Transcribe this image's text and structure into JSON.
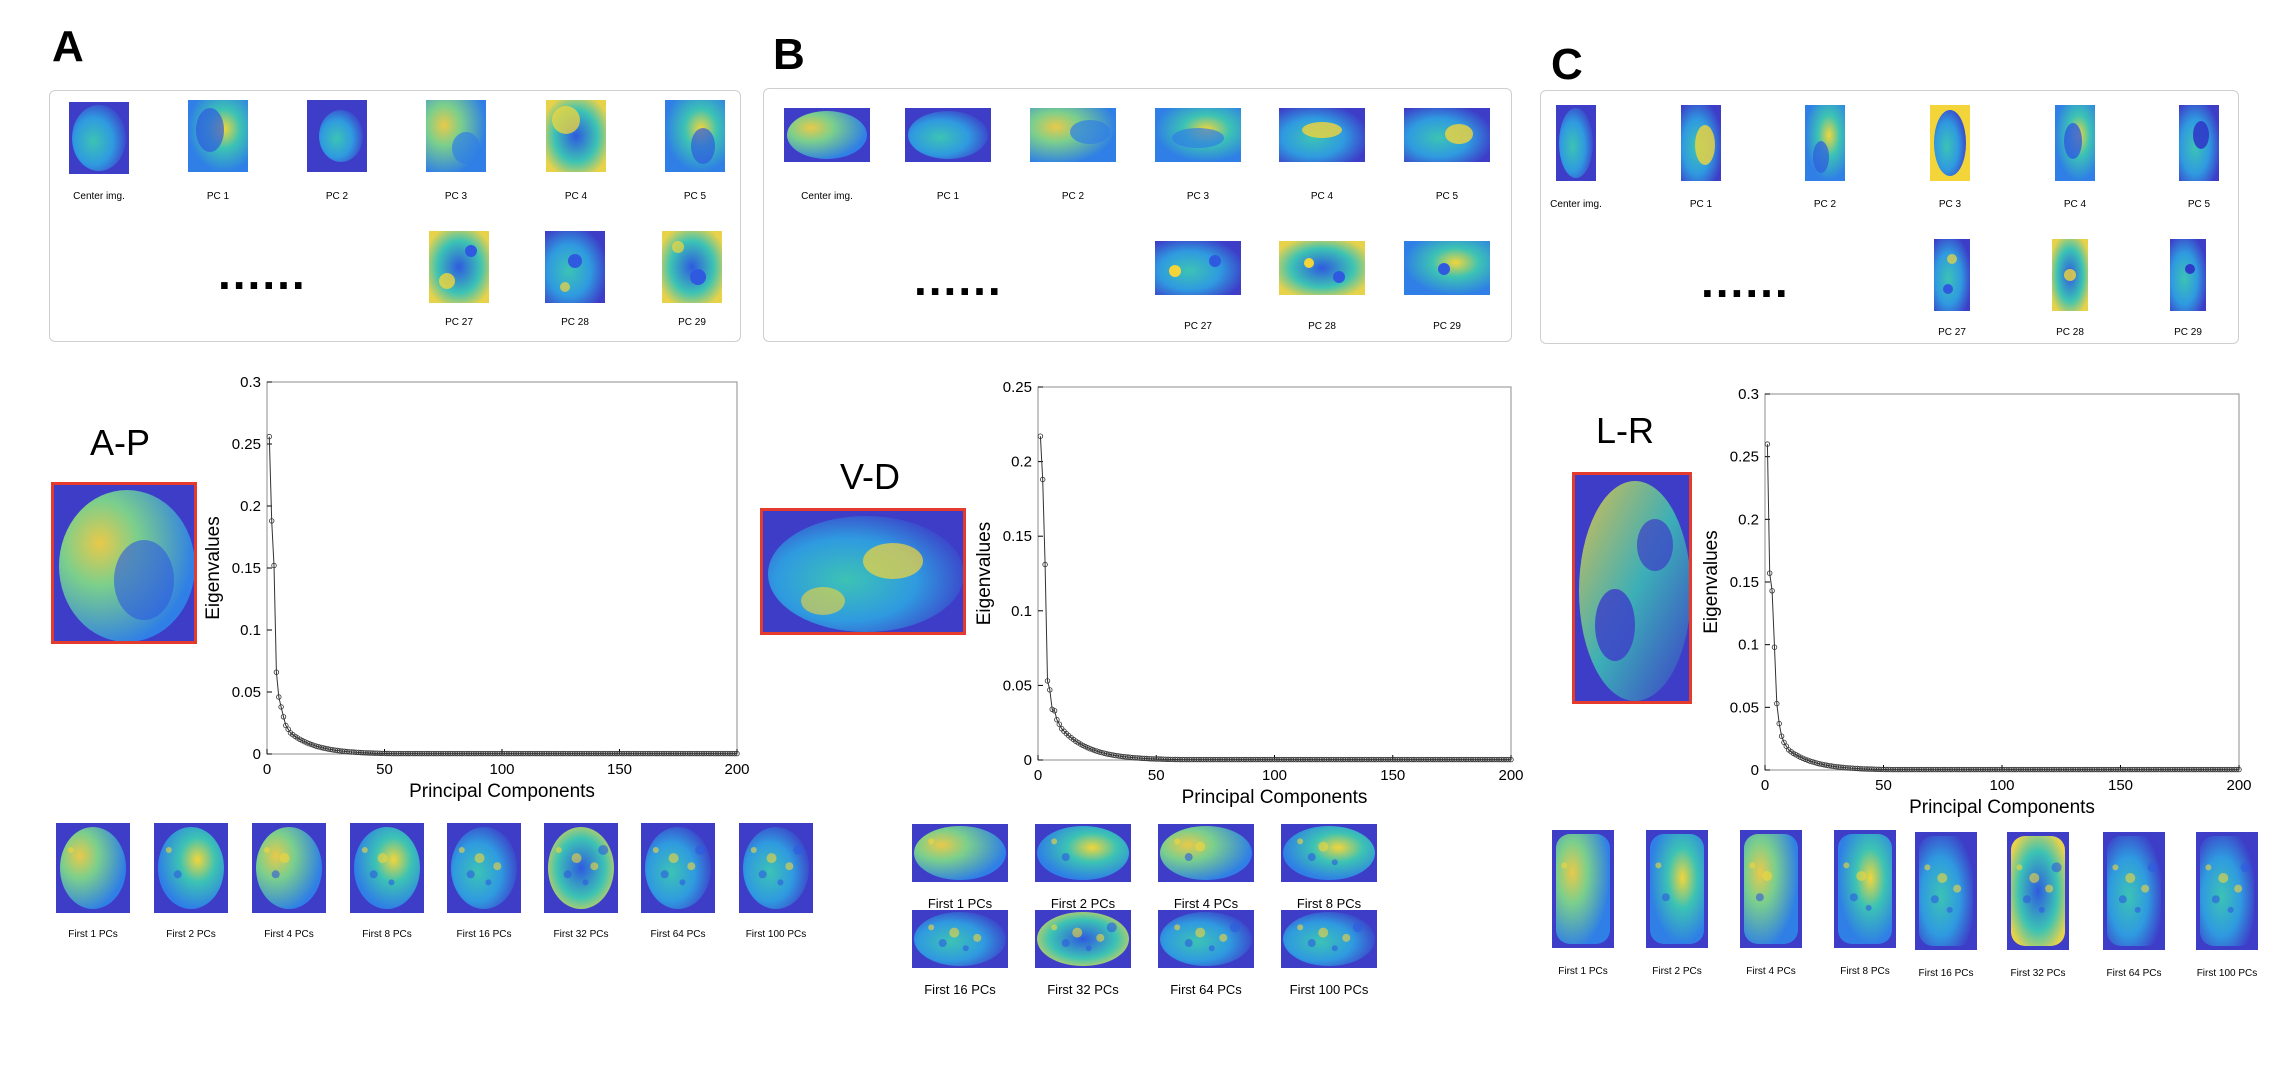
{
  "panels": [
    {
      "letter": "A",
      "view_label": "A-P",
      "top_labels": [
        "Center img.",
        "PC 1",
        "PC 2",
        "PC 3",
        "PC 4",
        "PC 5"
      ],
      "ellipsis": "......",
      "tail_labels": [
        "PC 27",
        "PC 28",
        "PC 29"
      ],
      "bottom_labels": [
        "First 1 PCs",
        "First 2 PCs",
        "First 4 PCs",
        "First 8 PCs",
        "First 16 PCs",
        "First 32 PCs",
        "First 64 PCs",
        "First 100 PCs"
      ]
    },
    {
      "letter": "B",
      "view_label": "V-D",
      "top_labels": [
        "Center img.",
        "PC 1",
        "PC 2",
        "PC 3",
        "PC 4",
        "PC 5"
      ],
      "ellipsis": "......",
      "tail_labels": [
        "PC 27",
        "PC 28",
        "PC 29"
      ],
      "bottom_labels": [
        "First 1 PCs",
        "First 2 PCs",
        "First 4 PCs",
        "First 8 PCs",
        "First 16 PCs",
        "First 32 PCs",
        "First 64 PCs",
        "First 100 PCs"
      ]
    },
    {
      "letter": "C",
      "view_label": "L-R",
      "top_labels": [
        "Center img.",
        "PC 1",
        "PC 2",
        "PC 3",
        "PC 4",
        "PC 5"
      ],
      "ellipsis": "......",
      "tail_labels": [
        "PC 27",
        "PC 28",
        "PC 29"
      ],
      "bottom_labels": [
        "First 1 PCs",
        "First 2 PCs",
        "First 4 PCs",
        "First 8 PCs",
        "First 16 PCs",
        "First 32 PCs",
        "First 64 PCs",
        "First 100 PCs"
      ]
    }
  ],
  "colors": {
    "map_dark_blue": "#3d3dc8",
    "map_blue": "#2f7fe6",
    "map_cyan": "#3cc3b4",
    "map_yellow": "#f3d53a",
    "highlight_border": "#e53a2e"
  },
  "chart_data": [
    {
      "type": "line",
      "xlabel": "Principal Components",
      "ylabel": "Eigenvalues",
      "xlim": [
        0,
        200
      ],
      "ylim": [
        0,
        0.3
      ],
      "xticks": [
        0,
        50,
        100,
        150,
        200
      ],
      "yticks": [
        0,
        0.05,
        0.1,
        0.15,
        0.2,
        0.25,
        0.3
      ],
      "series": [
        {
          "head": [
            0.256,
            0.188,
            0.152,
            0.066,
            0.046,
            0.038,
            0.03,
            0.023,
            0.02,
            0.017
          ],
          "decay": 0.09,
          "floor": 0.0003
        }
      ]
    },
    {
      "type": "line",
      "xlabel": "Principal Components",
      "ylabel": "Eigenvalues",
      "xlim": [
        0,
        200
      ],
      "ylim": [
        0,
        0.25
      ],
      "xticks": [
        0,
        50,
        100,
        150,
        200
      ],
      "yticks": [
        0,
        0.05,
        0.1,
        0.15,
        0.2,
        0.25
      ],
      "series": [
        {
          "head": [
            0.217,
            0.188,
            0.131,
            0.053,
            0.047,
            0.034,
            0.033,
            0.027,
            0.024,
            0.021
          ],
          "decay": 0.085,
          "floor": 0.0003
        }
      ]
    },
    {
      "type": "line",
      "xlabel": "Principal Components",
      "ylabel": "Eigenvalues",
      "xlim": [
        0,
        200
      ],
      "ylim": [
        0,
        0.3
      ],
      "xticks": [
        0,
        50,
        100,
        150,
        200
      ],
      "yticks": [
        0,
        0.05,
        0.1,
        0.15,
        0.2,
        0.25,
        0.3
      ],
      "series": [
        {
          "head": [
            0.26,
            0.157,
            0.143,
            0.098,
            0.053,
            0.037,
            0.027,
            0.022,
            0.019,
            0.016
          ],
          "decay": 0.09,
          "floor": 0.0003
        }
      ]
    }
  ]
}
